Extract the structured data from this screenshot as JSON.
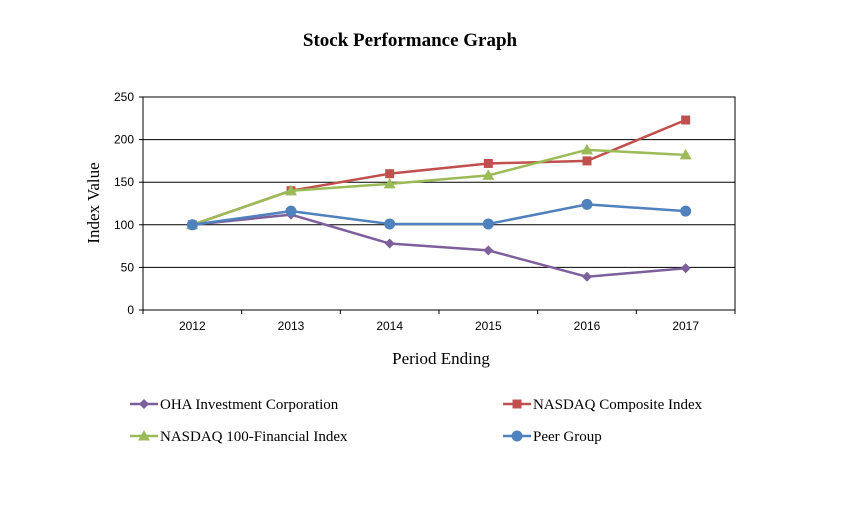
{
  "chart_data": {
    "type": "line",
    "title": "Stock Performance Graph",
    "xlabel": "Period Ending",
    "ylabel": "Index Value",
    "categories": [
      "2012",
      "2013",
      "2014",
      "2015",
      "2016",
      "2017"
    ],
    "ylim": [
      0,
      250
    ],
    "yticks": [
      0,
      50,
      100,
      150,
      200,
      250
    ],
    "grid": "horizontal",
    "legend_position": "bottom",
    "series": [
      {
        "name": "OHA Investment Corporation",
        "values": [
          100,
          112,
          78,
          70,
          39,
          49
        ],
        "color": "#7e5f9c",
        "marker": "diamond"
      },
      {
        "name": "NASDAQ Composite Index",
        "values": [
          100,
          140,
          160,
          172,
          175,
          223
        ],
        "color": "#c0504d",
        "marker": "square"
      },
      {
        "name": "NASDAQ 100-Financial Index",
        "values": [
          100,
          140,
          148,
          158,
          188,
          182
        ],
        "color": "#9bbb59",
        "marker": "triangle"
      },
      {
        "name": "Peer Group",
        "values": [
          100,
          116,
          101,
          101,
          124,
          116
        ],
        "color": "#4f81bd",
        "marker": "circle"
      }
    ]
  }
}
